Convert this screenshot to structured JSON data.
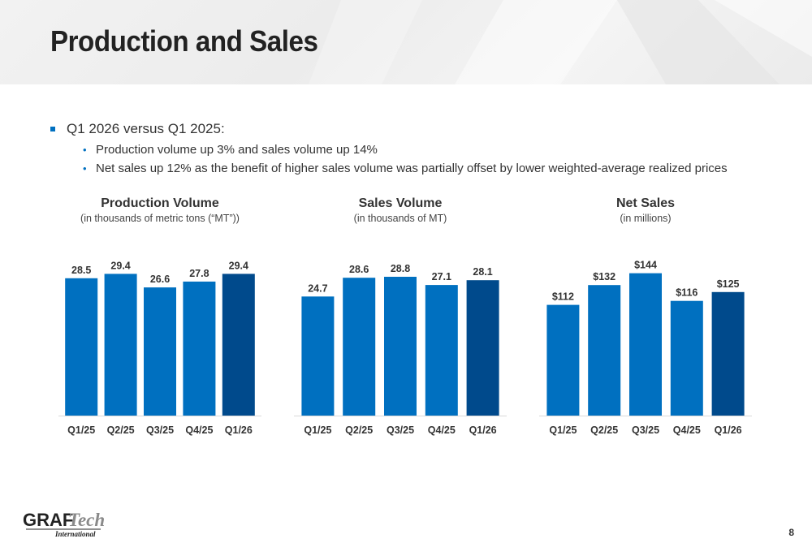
{
  "page": {
    "title": "Production and Sales",
    "page_number": "8",
    "accent_color": "#0070c0",
    "highlight_color": "#004a8c"
  },
  "bullets": {
    "main": "Q1 2026 versus Q1 2025:",
    "sub": [
      "Production volume up 3% and sales volume up 14%",
      "Net sales up 12% as the benefit of higher sales volume was partially offset by lower weighted-average realized prices"
    ]
  },
  "logo": {
    "icon": "graftech-logo",
    "word1": "GRAF",
    "word2": "Tech",
    "word3": "International"
  },
  "chart_data": [
    {
      "type": "bar",
      "title": "Production Volume",
      "subtitle": "(in thousands of metric tons (“MT”))",
      "categories": [
        "Q1/25",
        "Q2/25",
        "Q3/25",
        "Q4/25",
        "Q1/26"
      ],
      "values": [
        28.5,
        29.4,
        26.6,
        27.8,
        29.4
      ],
      "labels": [
        "28.5",
        "29.4",
        "26.6",
        "27.8",
        "29.4"
      ],
      "highlight_index": 4,
      "ylim": [
        0,
        32
      ]
    },
    {
      "type": "bar",
      "title": "Sales Volume",
      "subtitle": "(in thousands of MT)",
      "categories": [
        "Q1/25",
        "Q2/25",
        "Q3/25",
        "Q4/25",
        "Q1/26"
      ],
      "values": [
        24.7,
        28.6,
        28.8,
        27.1,
        28.1
      ],
      "labels": [
        "24.7",
        "28.6",
        "28.8",
        "27.1",
        "28.1"
      ],
      "highlight_index": 4,
      "ylim": [
        0,
        32
      ]
    },
    {
      "type": "bar",
      "title": "Net Sales",
      "subtitle": "(in millions)",
      "categories": [
        "Q1/25",
        "Q2/25",
        "Q3/25",
        "Q4/25",
        "Q1/26"
      ],
      "values": [
        112,
        132,
        144,
        116,
        125
      ],
      "labels": [
        "$112",
        "$132",
        "$144",
        "$116",
        "$125"
      ],
      "highlight_index": 4,
      "ylim": [
        0,
        156
      ]
    }
  ]
}
